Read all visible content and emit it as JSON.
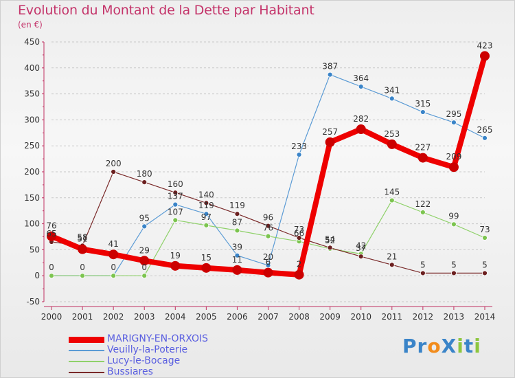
{
  "title": "Evolution du Montant de la Dette par Habitant",
  "subtitle": "(en €)",
  "brand": {
    "text": "ProXiti",
    "letters": [
      {
        "ch": "P",
        "color": "#3a84c8"
      },
      {
        "ch": "r",
        "color": "#3a84c8"
      },
      {
        "ch": "o",
        "color": "#f28c1c"
      },
      {
        "ch": "X",
        "color": "#3a84c8"
      },
      {
        "ch": "i",
        "color": "#8dc63f"
      },
      {
        "ch": "t",
        "color": "#3a84c8"
      },
      {
        "ch": "i",
        "color": "#8dc63f"
      }
    ]
  },
  "chart_data": {
    "type": "line",
    "title": "Evolution du Montant de la Dette par Habitant",
    "subtitle": "(en €)",
    "x": [
      "2000",
      "2001",
      "2002",
      "2003",
      "2004",
      "2005",
      "2006",
      "2007",
      "2008",
      "2009",
      "2010",
      "2011",
      "2012",
      "2013",
      "2014"
    ],
    "ylim": [
      -50,
      450
    ],
    "yticks": [
      -50,
      0,
      50,
      100,
      150,
      200,
      250,
      300,
      350,
      400,
      450
    ],
    "grid": "horizontal dashed",
    "legend_position": "bottom-left",
    "series": [
      {
        "name": "MARIGNY-EN-ORXOIS",
        "color": "#ee0000",
        "emphasis": true,
        "values": [
          76,
          51,
          41,
          29,
          19,
          15,
          11,
          6,
          2,
          257,
          282,
          253,
          227,
          209,
          423
        ],
        "labels": [
          "76",
          "51",
          "41",
          "29",
          "19",
          "15",
          "11",
          "6",
          "2",
          "257",
          "282",
          "253",
          "227",
          "209",
          "423"
        ]
      },
      {
        "name": "Veuilly-la-Poterie",
        "color": "#5b9bd5",
        "dot": "#3a84c8",
        "values": [
          0,
          0,
          0,
          95,
          137,
          119,
          39,
          20,
          233,
          387,
          364,
          341,
          315,
          295,
          265
        ],
        "labels": [
          "",
          "",
          "",
          "95",
          "137",
          "119",
          "39",
          "20",
          "233",
          "387",
          "364",
          "341",
          "315",
          "295",
          "265"
        ]
      },
      {
        "name": "Lucy-le-Bocage",
        "color": "#8fd16a",
        "dot": "#7cc44f",
        "values": [
          0,
          0,
          0,
          0,
          107,
          97,
          87,
          76,
          66,
          52,
          42,
          145,
          122,
          99,
          73
        ],
        "labels": [
          "0",
          "0",
          "0",
          "0",
          "107",
          "97",
          "87",
          "76",
          "66",
          "52",
          "42",
          "145",
          "122",
          "99",
          "73"
        ]
      },
      {
        "name": "Bussiares",
        "color": "#7a2a2a",
        "dot": "#6b1f1f",
        "values": [
          65,
          58,
          200,
          180,
          160,
          140,
          119,
          96,
          73,
          54,
          37,
          21,
          5,
          5,
          5
        ],
        "labels": [
          "65",
          "58",
          "200",
          "180",
          "160",
          "140",
          "119",
          "96",
          "73",
          "54",
          "37",
          "21",
          "5",
          "5",
          "5"
        ]
      }
    ]
  }
}
